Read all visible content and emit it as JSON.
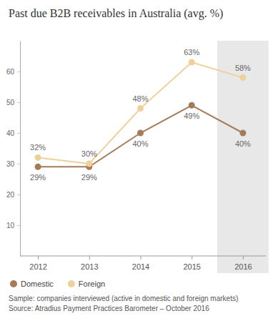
{
  "chart_data": {
    "type": "line",
    "title": "Past due B2B receivables in Australia (avg. %)",
    "categories": [
      "2012",
      "2013",
      "2014",
      "2015",
      "2016"
    ],
    "series": [
      {
        "name": "Domestic",
        "color": "#a57c5a",
        "marker": "circle",
        "line_style": "solid",
        "values": [
          29,
          29,
          40,
          49,
          40
        ],
        "value_labels": [
          "29%",
          "29%",
          "40%",
          "49%",
          "40%"
        ]
      },
      {
        "name": "Foreign",
        "color": "#eed09a",
        "marker": "circle",
        "line_style": "solid",
        "values": [
          32,
          30,
          48,
          63,
          58
        ],
        "value_labels": [
          "32%",
          "30%",
          "48%",
          "63%",
          "58%"
        ]
      }
    ],
    "ylim": [
      0,
      70
    ],
    "yticks": [
      10,
      20,
      30,
      40,
      50,
      60
    ],
    "grid": false,
    "data_labels": true,
    "legend": "bottom-left",
    "annotations": [
      "Sample: companies interviewed (active in domestic and foreign markets)",
      "Source: Atradius Payment Practices Barometer – October 2016"
    ]
  }
}
